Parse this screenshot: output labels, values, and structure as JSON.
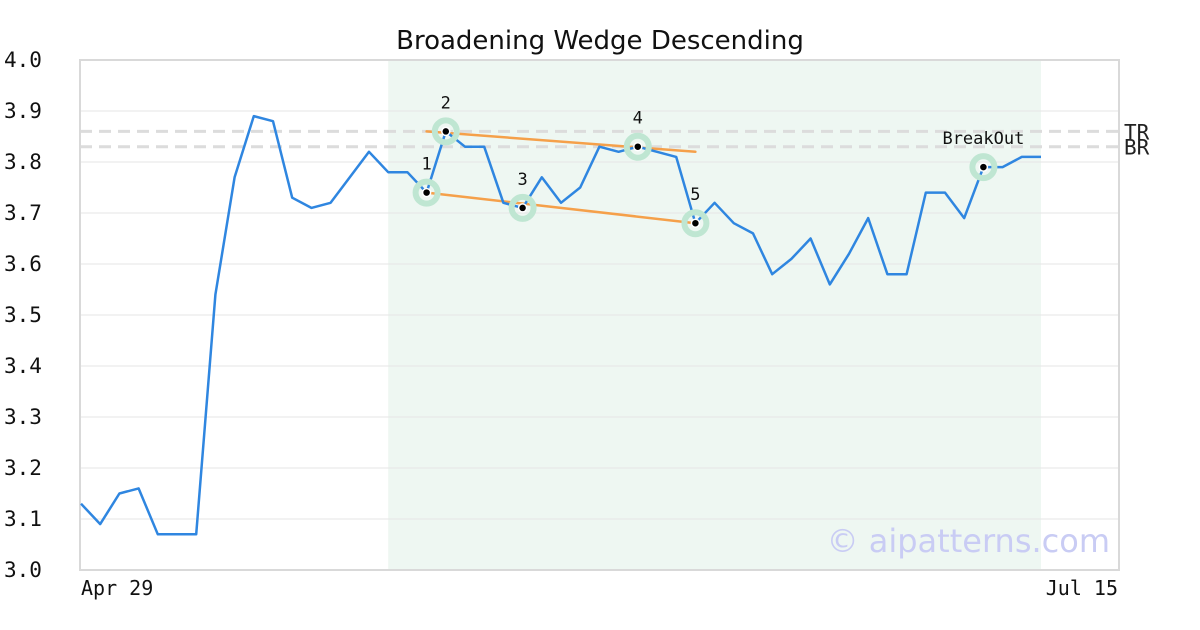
{
  "chart_data": {
    "type": "line",
    "title": "Broadening Wedge Descending",
    "xlabel": "",
    "ylabel": "",
    "ylim": [
      3.0,
      4.0
    ],
    "y_ticks": [
      "4.0",
      "3.9",
      "3.8",
      "3.7",
      "3.6",
      "3.5",
      "3.4",
      "3.3",
      "3.2",
      "3.1",
      "3.0"
    ],
    "x_tick_labels": [
      "Apr 29",
      "Jul 15"
    ],
    "grid": "horizontal",
    "series": [
      {
        "color": "#2f86e0",
        "values": [
          3.13,
          3.09,
          3.15,
          3.16,
          3.07,
          3.07,
          3.07,
          3.54,
          3.77,
          3.89,
          3.88,
          3.73,
          3.71,
          3.72,
          3.77,
          3.82,
          3.78,
          3.78,
          3.74,
          3.86,
          3.83,
          3.83,
          3.72,
          3.71,
          3.77,
          3.72,
          3.75,
          3.83,
          3.82,
          3.83,
          3.82,
          3.81,
          3.68,
          3.72,
          3.68,
          3.66,
          3.58,
          3.61,
          3.65,
          3.56,
          3.62,
          3.69,
          3.58,
          3.58,
          3.74,
          3.74,
          3.69,
          3.79,
          3.79,
          3.81,
          3.81
        ]
      }
    ],
    "pattern_region": {
      "start_index": 16,
      "end_index": 50,
      "color": "#eef7f2"
    },
    "trend_lines": [
      {
        "color": "#f5a04a",
        "from": {
          "index": 18,
          "value": 3.86
        },
        "to": {
          "index": 32,
          "value": 3.82
        }
      },
      {
        "color": "#f5a04a",
        "from": {
          "index": 18,
          "value": 3.74
        },
        "to": {
          "index": 32,
          "value": 3.68
        }
      }
    ],
    "reference_lines": [
      {
        "label": "TR",
        "value": 3.86
      },
      {
        "label": "BR",
        "value": 3.83
      }
    ],
    "markers": [
      {
        "label": "1",
        "index": 18,
        "value": 3.74,
        "label_pos": "above"
      },
      {
        "label": "2",
        "index": 19,
        "value": 3.86,
        "label_pos": "above"
      },
      {
        "label": "3",
        "index": 23,
        "value": 3.71,
        "label_pos": "above"
      },
      {
        "label": "4",
        "index": 29,
        "value": 3.83,
        "label_pos": "above"
      },
      {
        "label": "5",
        "index": 32,
        "value": 3.68,
        "label_pos": "above"
      },
      {
        "label": "BreakOut",
        "index": 47,
        "value": 3.79,
        "label_pos": "above"
      }
    ],
    "watermark": "© aipatterns.com"
  }
}
